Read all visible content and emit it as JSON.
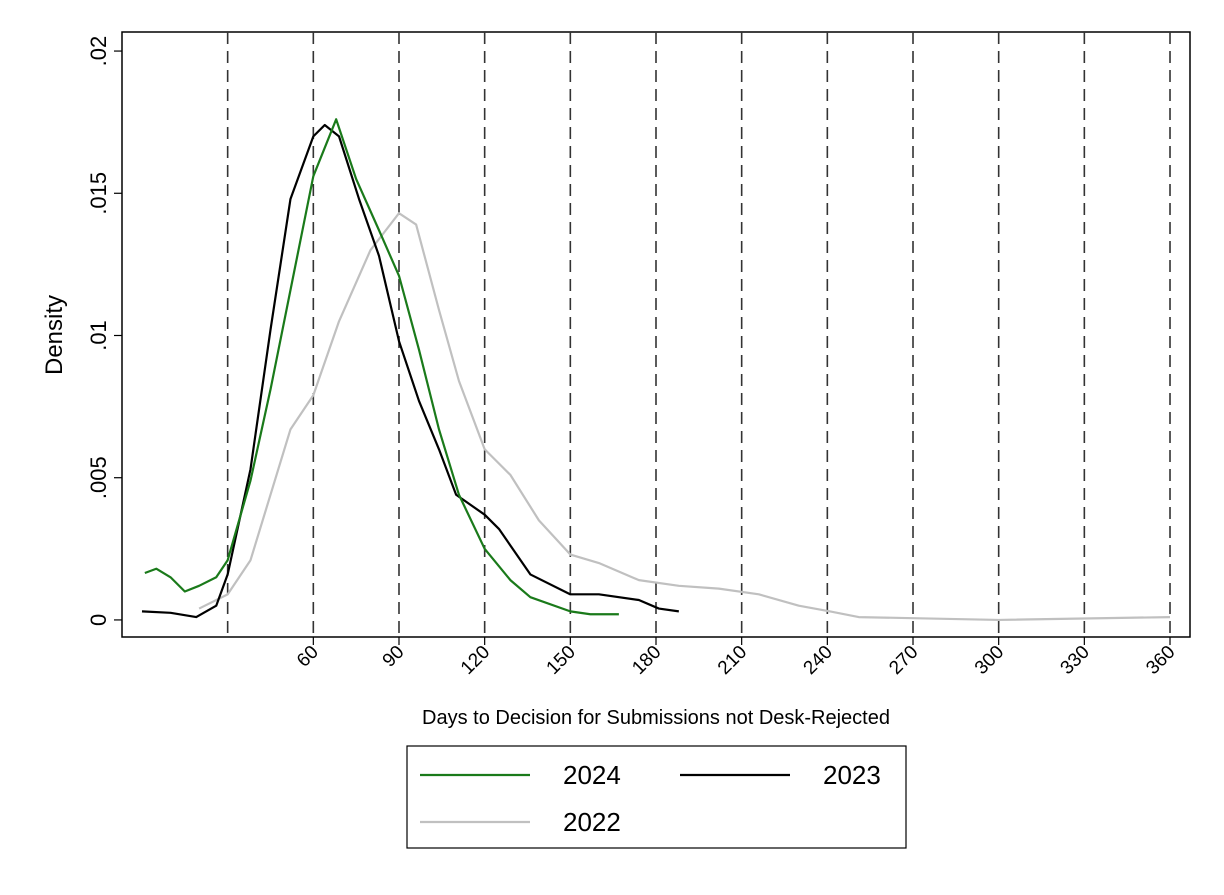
{
  "chart_data": {
    "type": "line",
    "x_label": "Days to Decision for Submissions not Desk-Rejected",
    "y_label": "Density",
    "xlim": [
      -7,
      367
    ],
    "ylim": [
      -0.0006,
      0.02067
    ],
    "xticks": [
      60,
      90,
      120,
      150,
      180,
      210,
      240,
      270,
      300,
      330,
      360
    ],
    "yticks": [
      0,
      {
        "value": 0.005,
        "label": ".005"
      },
      {
        "value": 0.01,
        "label": ".01"
      },
      {
        "value": 0.015,
        "label": ".015"
      },
      {
        "value": 0.02,
        "label": ".02"
      }
    ],
    "vlines": [
      30,
      60,
      90,
      120,
      150,
      180,
      210,
      240,
      270,
      300,
      330,
      360
    ],
    "legend": "bottom",
    "series": [
      {
        "name": "2024",
        "color": "#1a7a1a",
        "x": [
          1,
          5,
          10,
          15,
          20,
          26,
          30,
          38,
          45,
          52,
          60,
          68,
          75,
          83,
          90,
          97,
          104,
          111,
          120,
          129,
          136,
          150,
          157,
          167
        ],
        "values": [
          0.00165,
          0.0018,
          0.0015,
          0.001,
          0.0012,
          0.0015,
          0.0021,
          0.0049,
          0.0081,
          0.0116,
          0.0156,
          0.0176,
          0.0155,
          0.0137,
          0.0121,
          0.0095,
          0.0067,
          0.0044,
          0.0025,
          0.0014,
          0.0008,
          0.0003,
          0.0002,
          0.0002
        ]
      },
      {
        "name": "2023",
        "color": "#000000",
        "x": [
          0,
          10,
          19,
          26,
          30,
          38,
          45,
          52,
          60,
          64,
          69,
          76,
          83,
          90,
          97,
          104,
          110,
          120,
          125,
          136,
          150,
          160,
          174,
          181,
          188
        ],
        "values": [
          0.0003,
          0.00025,
          0.0001,
          0.0005,
          0.0016,
          0.0053,
          0.0102,
          0.0148,
          0.017,
          0.0174,
          0.017,
          0.0148,
          0.0128,
          0.0098,
          0.0077,
          0.006,
          0.0044,
          0.0037,
          0.0032,
          0.0016,
          0.0009,
          0.0009,
          0.0007,
          0.0004,
          0.0003
        ]
      },
      {
        "name": "2022",
        "color": "#c0c0c0",
        "x": [
          20,
          30,
          38,
          52,
          60,
          69,
          80,
          90,
          96,
          104,
          111,
          120,
          129,
          139,
          150,
          160,
          174,
          188,
          202,
          216,
          230,
          241,
          251,
          300,
          360
        ],
        "values": [
          0.0004,
          0.0009,
          0.0021,
          0.0067,
          0.0079,
          0.0105,
          0.013,
          0.0143,
          0.0139,
          0.0109,
          0.0084,
          0.006,
          0.0051,
          0.0035,
          0.0023,
          0.002,
          0.0014,
          0.0012,
          0.0011,
          0.0009,
          0.0005,
          0.0003,
          0.0001,
          0.0,
          0.0001
        ]
      }
    ]
  }
}
